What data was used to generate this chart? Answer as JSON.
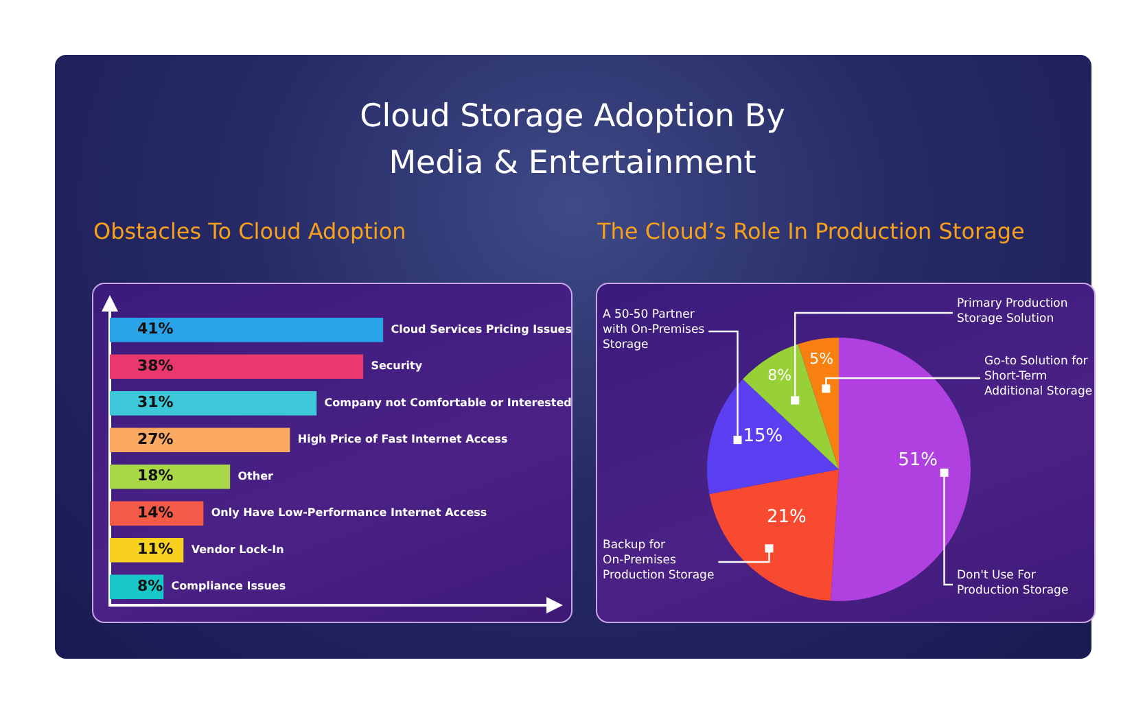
{
  "chart_data": [
    {
      "type": "bar",
      "orientation": "horizontal",
      "title": "Cloud Storage Adoption By Media & Entertainment",
      "subtitle": "Obstacles To Cloud Adoption",
      "categories": [
        "Cloud Services Pricing Issues",
        "Security",
        "Company not Comfortable or Interested",
        "High Price of Fast Internet Access",
        "Other",
        "Only Have Low-Performance Internet Access",
        "Vendor Lock-In",
        "Compliance Issues"
      ],
      "values": [
        41,
        38,
        31,
        27,
        18,
        14,
        11,
        8
      ],
      "value_labels": [
        "41%",
        "38%",
        "31%",
        "27%",
        "18%",
        "14%",
        "11%",
        "8%"
      ],
      "colors": [
        "#2aa4e8",
        "#e8386e",
        "#3cc8d8",
        "#fba860",
        "#a8d848",
        "#f45a48",
        "#f8d020",
        "#18c8c8"
      ]
    },
    {
      "type": "pie",
      "title": "The Cloud’s Role In Production Storage",
      "categories": [
        "Don't Use For Production Storage",
        "Backup for On-Premises Production Storage",
        "A 50-50 Partner with On-Premises Storage",
        "Primary Production Storage Solution",
        "Go-to Solution for Short-Term Additional Storage"
      ],
      "values": [
        51,
        21,
        15,
        8,
        5
      ],
      "value_labels": [
        "51%",
        "21%",
        "15%",
        "8%",
        "5%"
      ],
      "colors": [
        "#b040e0",
        "#f84a30",
        "#5a40f0",
        "#98d038",
        "#f88010"
      ]
    }
  ]
}
